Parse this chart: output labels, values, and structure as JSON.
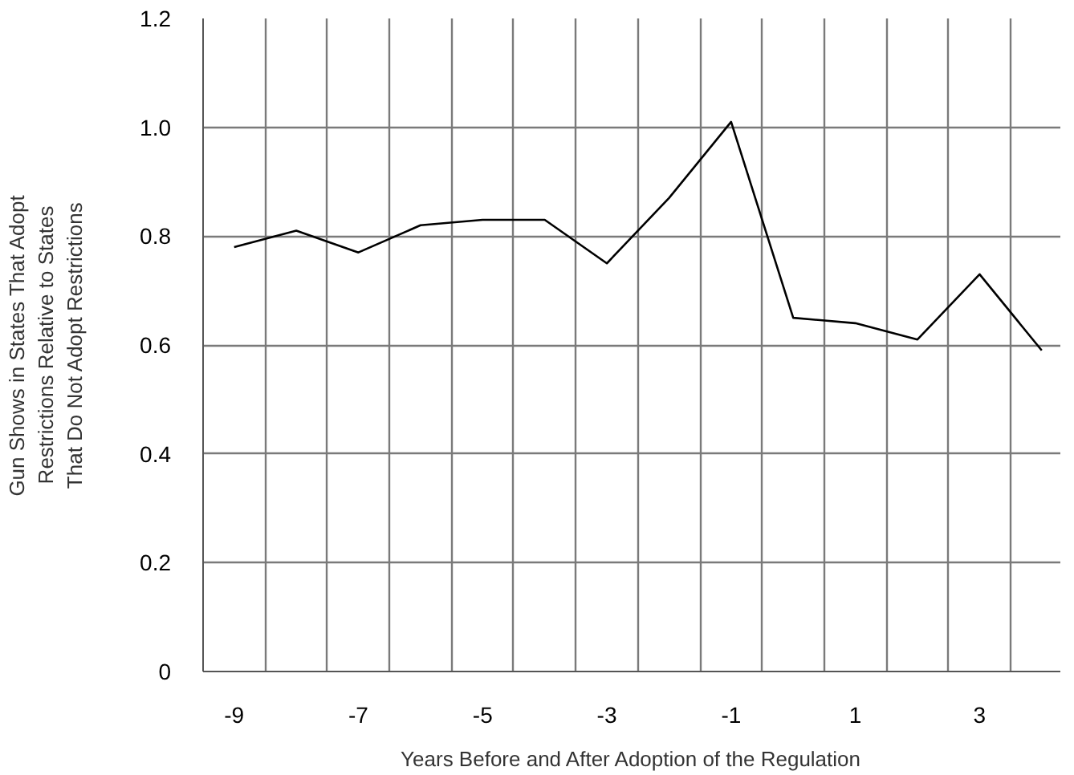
{
  "chart_data": {
    "type": "line",
    "xlabel": "Years Before and After Adoption of the Regulation",
    "ylabel": "Gun Shows in States That Adopt\nRestrictions Relative to States\nThat Do Not Adopt Restrictions",
    "x": [
      -9,
      -8,
      -7,
      -6,
      -5,
      -4,
      -3,
      -2,
      -1,
      0,
      1,
      2,
      3,
      4
    ],
    "series": [
      {
        "color": "#000000",
        "values": [
          0.78,
          0.81,
          0.77,
          0.82,
          0.83,
          0.83,
          0.75,
          0.87,
          1.01,
          0.65,
          0.64,
          0.61,
          0.73,
          0.59
        ]
      }
    ],
    "xlim": [
      -9.5,
      4.3
    ],
    "xticks": [
      {
        "value": -9.5,
        "label": null
      },
      -9,
      {
        "value": -8.5,
        "label": null
      },
      {
        "value": -7.5,
        "label": null
      },
      -7,
      {
        "value": -6.5,
        "label": null
      },
      {
        "value": -5.5,
        "label": null
      },
      -5,
      {
        "value": -4.5,
        "label": null
      },
      {
        "value": -3.5,
        "label": null
      },
      -3,
      {
        "value": -2.5,
        "label": null
      },
      {
        "value": -1.5,
        "label": null
      },
      -1,
      {
        "value": -0.5,
        "label": null
      },
      {
        "value": 0.5,
        "label": null
      },
      1,
      {
        "value": 1.5,
        "label": null
      },
      {
        "value": 2.5,
        "label": null
      },
      3,
      {
        "value": 3.5,
        "label": null
      }
    ],
    "ylim": [
      0,
      1.2
    ],
    "yticks": [
      {
        "value": 0,
        "label": "0"
      },
      0.2,
      0.4,
      0.6,
      0.8,
      {
        "value": 1.0,
        "label": "1.0"
      },
      1.2
    ],
    "grid": true,
    "line_style": "solid"
  }
}
